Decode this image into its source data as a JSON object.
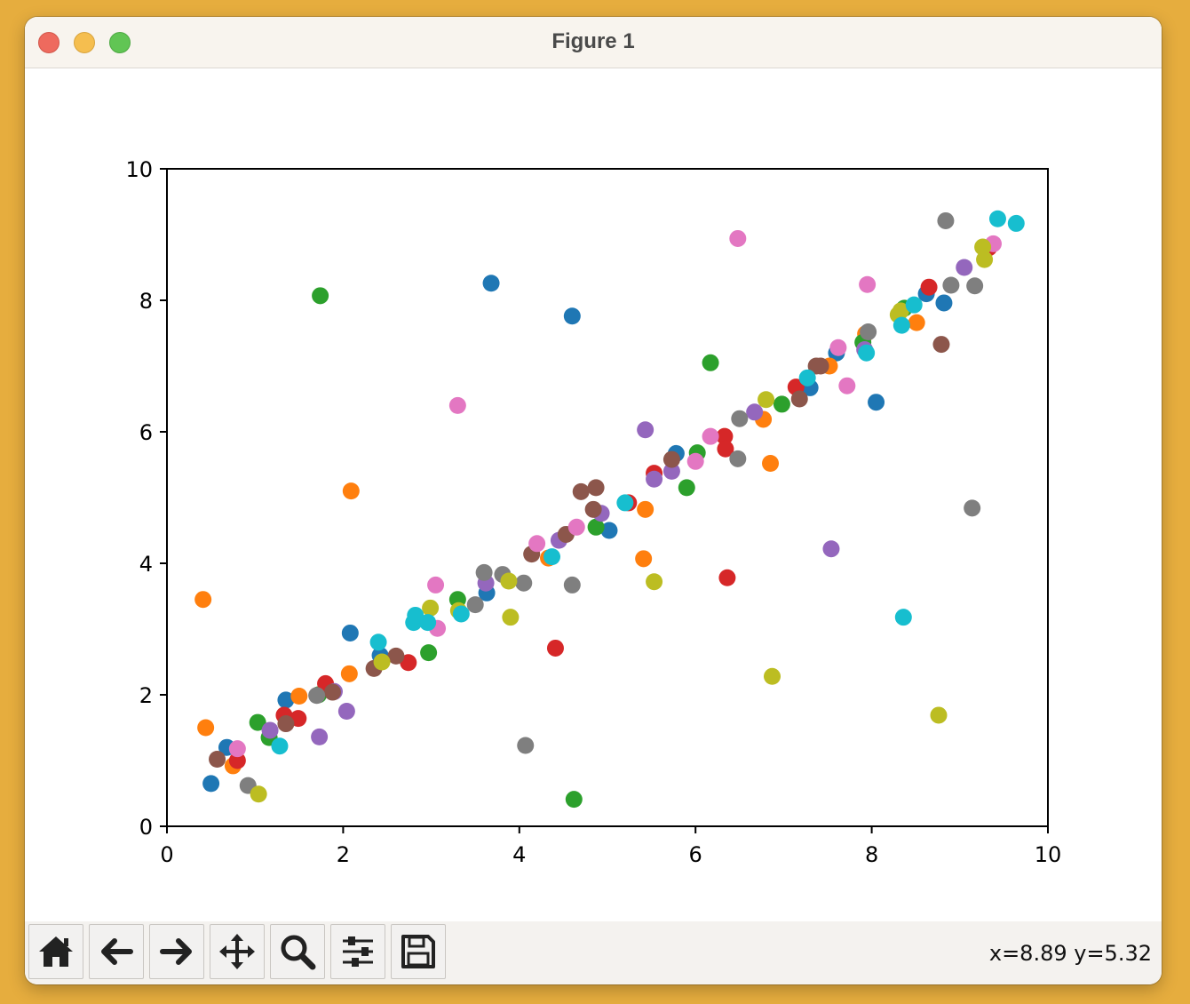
{
  "window": {
    "title": "Figure 1"
  },
  "toolbar": {
    "buttons": [
      {
        "name": "home-icon"
      },
      {
        "name": "back-arrow-icon"
      },
      {
        "name": "forward-arrow-icon"
      },
      {
        "name": "pan-move-icon"
      },
      {
        "name": "zoom-magnifier-icon"
      },
      {
        "name": "subplots-sliders-icon"
      },
      {
        "name": "save-disk-icon"
      }
    ],
    "cursor_readout": "x=8.89 y=5.32"
  },
  "chart_data": {
    "type": "scatter",
    "title": "",
    "xlabel": "",
    "ylabel": "",
    "xlim": [
      0,
      10
    ],
    "ylim": [
      0,
      10
    ],
    "xticks": [
      "0",
      "2",
      "4",
      "6",
      "8",
      "10"
    ],
    "yticks": [
      "0",
      "2",
      "4",
      "6",
      "8",
      "10"
    ],
    "grid": false,
    "colors": [
      "#1f77b4",
      "#ff7f0e",
      "#2ca02c",
      "#d62728",
      "#9467bd",
      "#8c564b",
      "#e377c2",
      "#7f7f7f",
      "#bcbd22",
      "#17becf"
    ],
    "series": [
      {
        "color": "#1f77b4",
        "points": [
          [
            0.5,
            0.65
          ],
          [
            0.68,
            1.2
          ],
          [
            1.35,
            1.92
          ],
          [
            2.08,
            2.94
          ],
          [
            2.42,
            2.6
          ],
          [
            3.68,
            8.26
          ],
          [
            3.63,
            3.55
          ],
          [
            4.6,
            7.76
          ],
          [
            5.02,
            4.5
          ],
          [
            5.78,
            5.67
          ],
          [
            7.3,
            6.67
          ],
          [
            7.6,
            7.2
          ],
          [
            8.05,
            6.45
          ],
          [
            8.62,
            8.1
          ],
          [
            8.82,
            7.96
          ]
        ]
      },
      {
        "color": "#ff7f0e",
        "points": [
          [
            0.41,
            3.45
          ],
          [
            0.44,
            1.5
          ],
          [
            0.75,
            0.92
          ],
          [
            1.5,
            1.98
          ],
          [
            2.07,
            2.32
          ],
          [
            2.09,
            5.1
          ],
          [
            4.33,
            4.08
          ],
          [
            5.41,
            4.07
          ],
          [
            5.43,
            4.82
          ],
          [
            6.77,
            6.19
          ],
          [
            6.85,
            5.52
          ],
          [
            7.52,
            7.0
          ],
          [
            8.51,
            7.66
          ],
          [
            7.93,
            7.49
          ]
        ]
      },
      {
        "color": "#2ca02c",
        "points": [
          [
            1.74,
            8.07
          ],
          [
            1.03,
            1.58
          ],
          [
            1.16,
            1.35
          ],
          [
            1.72,
            2.0
          ],
          [
            2.97,
            2.64
          ],
          [
            3.3,
            3.45
          ],
          [
            4.62,
            0.41
          ],
          [
            4.87,
            4.55
          ],
          [
            5.9,
            5.15
          ],
          [
            6.02,
            5.68
          ],
          [
            6.17,
            7.05
          ],
          [
            6.98,
            6.42
          ],
          [
            7.9,
            7.36
          ],
          [
            8.37,
            7.88
          ]
        ]
      },
      {
        "color": "#d62728",
        "points": [
          [
            0.8,
            1.0
          ],
          [
            1.33,
            1.69
          ],
          [
            1.49,
            1.64
          ],
          [
            1.8,
            2.17
          ],
          [
            2.74,
            2.49
          ],
          [
            4.41,
            2.71
          ],
          [
            5.24,
            4.92
          ],
          [
            5.53,
            5.37
          ],
          [
            6.33,
            5.93
          ],
          [
            6.34,
            5.74
          ],
          [
            6.36,
            3.78
          ],
          [
            7.14,
            6.68
          ],
          [
            8.65,
            8.2
          ],
          [
            9.33,
            8.8
          ]
        ]
      },
      {
        "color": "#9467bd",
        "points": [
          [
            1.17,
            1.46
          ],
          [
            1.73,
            1.36
          ],
          [
            1.9,
            2.05
          ],
          [
            2.04,
            1.75
          ],
          [
            3.62,
            3.7
          ],
          [
            4.45,
            4.35
          ],
          [
            4.93,
            4.76
          ],
          [
            5.43,
            6.03
          ],
          [
            5.53,
            5.28
          ],
          [
            5.73,
            5.4
          ],
          [
            6.67,
            6.3
          ],
          [
            7.54,
            4.22
          ],
          [
            7.92,
            7.25
          ],
          [
            9.05,
            8.5
          ]
        ]
      },
      {
        "color": "#8c564b",
        "points": [
          [
            0.57,
            1.02
          ],
          [
            1.35,
            1.56
          ],
          [
            1.88,
            2.04
          ],
          [
            2.35,
            2.4
          ],
          [
            2.6,
            2.59
          ],
          [
            4.14,
            4.14
          ],
          [
            4.53,
            4.44
          ],
          [
            4.7,
            5.09
          ],
          [
            4.84,
            4.82
          ],
          [
            4.87,
            5.15
          ],
          [
            5.73,
            5.58
          ],
          [
            7.18,
            6.5
          ],
          [
            7.37,
            7.0
          ],
          [
            7.42,
            7.0
          ],
          [
            8.79,
            7.33
          ]
        ]
      },
      {
        "color": "#e377c2",
        "points": [
          [
            0.8,
            1.18
          ],
          [
            3.05,
            3.67
          ],
          [
            3.07,
            3.01
          ],
          [
            3.3,
            6.4
          ],
          [
            4.2,
            4.3
          ],
          [
            4.65,
            4.55
          ],
          [
            6.0,
            5.55
          ],
          [
            6.17,
            5.93
          ],
          [
            6.48,
            8.94
          ],
          [
            7.62,
            7.28
          ],
          [
            7.72,
            6.7
          ],
          [
            7.95,
            8.24
          ],
          [
            9.38,
            8.86
          ]
        ]
      },
      {
        "color": "#7f7f7f",
        "points": [
          [
            0.92,
            0.62
          ],
          [
            1.7,
            1.99
          ],
          [
            3.5,
            3.37
          ],
          [
            3.6,
            3.86
          ],
          [
            3.81,
            3.83
          ],
          [
            4.05,
            3.7
          ],
          [
            4.07,
            1.23
          ],
          [
            4.6,
            3.67
          ],
          [
            6.48,
            5.59
          ],
          [
            6.5,
            6.2
          ],
          [
            7.96,
            7.52
          ],
          [
            8.84,
            9.21
          ],
          [
            8.9,
            8.23
          ],
          [
            9.14,
            4.84
          ],
          [
            9.17,
            8.22
          ]
        ]
      },
      {
        "color": "#bcbd22",
        "points": [
          [
            1.04,
            0.49
          ],
          [
            2.44,
            2.5
          ],
          [
            2.99,
            3.32
          ],
          [
            3.31,
            3.28
          ],
          [
            3.88,
            3.73
          ],
          [
            3.9,
            3.18
          ],
          [
            5.53,
            3.72
          ],
          [
            6.8,
            6.49
          ],
          [
            6.87,
            2.28
          ],
          [
            8.3,
            7.78
          ],
          [
            8.33,
            7.84
          ],
          [
            8.76,
            1.69
          ],
          [
            9.26,
            8.81
          ],
          [
            9.28,
            8.62
          ]
        ]
      },
      {
        "color": "#17becf",
        "points": [
          [
            1.28,
            1.22
          ],
          [
            2.4,
            2.8
          ],
          [
            2.8,
            3.1
          ],
          [
            2.82,
            3.21
          ],
          [
            2.96,
            3.1
          ],
          [
            3.34,
            3.23
          ],
          [
            4.37,
            4.1
          ],
          [
            5.2,
            4.92
          ],
          [
            7.27,
            6.82
          ],
          [
            7.94,
            7.2
          ],
          [
            8.34,
            7.62
          ],
          [
            8.36,
            3.18
          ],
          [
            8.48,
            7.93
          ],
          [
            9.43,
            9.24
          ],
          [
            9.64,
            9.17
          ]
        ]
      }
    ]
  }
}
